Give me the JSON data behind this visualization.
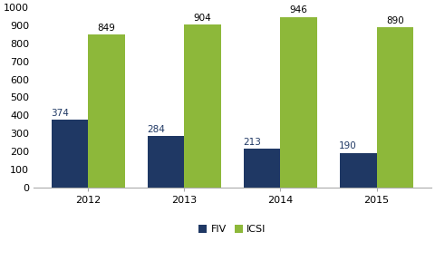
{
  "years": [
    "2012",
    "2013",
    "2014",
    "2015"
  ],
  "fiv_values": [
    374,
    284,
    213,
    190
  ],
  "icsi_values": [
    849,
    904,
    946,
    890
  ],
  "fiv_color": "#1F3864",
  "icsi_color": "#8DB83A",
  "ylim": [
    0,
    1000
  ],
  "yticks": [
    0,
    100,
    200,
    300,
    400,
    500,
    600,
    700,
    800,
    900,
    1000
  ],
  "legend_labels": [
    "FIV",
    "ICSI"
  ],
  "bar_width": 0.38,
  "label_fontsize": 7.5,
  "tick_fontsize": 8,
  "legend_fontsize": 8,
  "background_color": "#ffffff"
}
